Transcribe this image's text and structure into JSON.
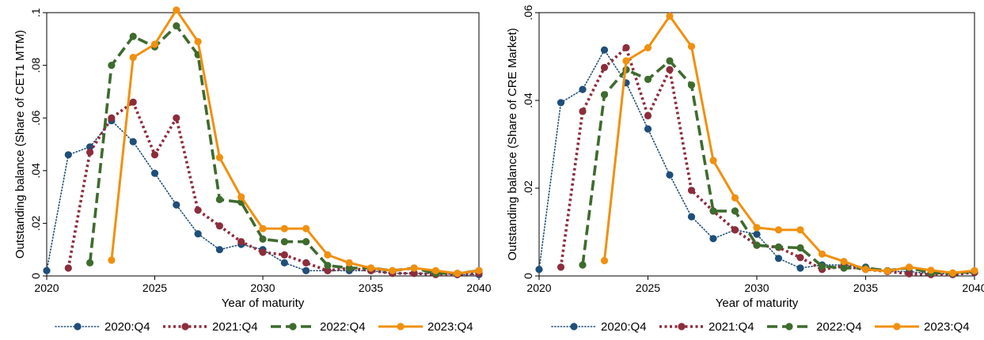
{
  "chart_data": [
    {
      "type": "line",
      "xlabel": "Year of maturity",
      "ylabel": "Outstanding balance (Share of CET1 MTM)",
      "xlim": [
        2020,
        2040
      ],
      "ylim": [
        0,
        0.1
      ],
      "xticks": [
        2020,
        2025,
        2030,
        2035,
        2040
      ],
      "xtick_labels": [
        "2020",
        "2025",
        "2030",
        "2035",
        "2040"
      ],
      "yticks": [
        0,
        0.02,
        0.04,
        0.06,
        0.08,
        0.1
      ],
      "ytick_labels": [
        "0",
        ".02",
        ".04",
        ".06",
        ".08",
        ".1"
      ],
      "legend_position": "bottom",
      "series": [
        {
          "name": "2020:Q4",
          "color": "#1f4e79",
          "style": "dotted",
          "x": [
            2020,
            2021,
            2022,
            2023,
            2024,
            2025,
            2026,
            2027,
            2028,
            2029,
            2030,
            2031,
            2032,
            2033,
            2034,
            2035,
            2036,
            2037,
            2038,
            2039,
            2040
          ],
          "y": [
            0.002,
            0.046,
            0.049,
            0.059,
            0.051,
            0.039,
            0.027,
            0.016,
            0.01,
            0.012,
            0.01,
            0.005,
            0.002,
            0.002,
            0.002,
            0.002,
            0.001,
            0.001,
            0.001,
            0.0005,
            0.0005
          ]
        },
        {
          "name": "2021:Q4",
          "color": "#8c2d3b",
          "style": "short-dash",
          "x": [
            2021,
            2022,
            2023,
            2024,
            2025,
            2026,
            2027,
            2028,
            2029,
            2030,
            2031,
            2032,
            2033,
            2034,
            2035,
            2036,
            2037,
            2038,
            2039,
            2040
          ],
          "y": [
            0.003,
            0.047,
            0.06,
            0.066,
            0.046,
            0.06,
            0.025,
            0.019,
            0.013,
            0.009,
            0.008,
            0.005,
            0.002,
            0.003,
            0.002,
            0.001,
            0.001,
            0.0005,
            0.0005,
            0.001
          ]
        },
        {
          "name": "2022:Q4",
          "color": "#3e6b2e",
          "style": "long-dash",
          "x": [
            2022,
            2023,
            2024,
            2025,
            2026,
            2027,
            2028,
            2029,
            2030,
            2031,
            2032,
            2033,
            2034,
            2035,
            2036,
            2037,
            2038,
            2039,
            2040
          ],
          "y": [
            0.005,
            0.08,
            0.091,
            0.087,
            0.095,
            0.084,
            0.029,
            0.028,
            0.014,
            0.013,
            0.013,
            0.004,
            0.003,
            0.003,
            0.002,
            0.003,
            0.001,
            0.001,
            0.002
          ]
        },
        {
          "name": "2023:Q4",
          "color": "#f0900f",
          "style": "solid",
          "x": [
            2023,
            2024,
            2025,
            2026,
            2027,
            2028,
            2029,
            2030,
            2031,
            2032,
            2033,
            2034,
            2035,
            2036,
            2037,
            2038,
            2039,
            2040
          ],
          "y": [
            0.006,
            0.083,
            0.088,
            0.101,
            0.089,
            0.045,
            0.03,
            0.018,
            0.018,
            0.018,
            0.008,
            0.005,
            0.003,
            0.002,
            0.003,
            0.002,
            0.001,
            0.002
          ]
        }
      ]
    },
    {
      "type": "line",
      "xlabel": "Year of maturity",
      "ylabel": "Outstanding balance (Share of CRE Market)",
      "xlim": [
        2020,
        2040
      ],
      "ylim": [
        0,
        0.06
      ],
      "xticks": [
        2020,
        2025,
        2030,
        2035,
        2040
      ],
      "xtick_labels": [
        "2020",
        "2025",
        "2030",
        "2035",
        "2040"
      ],
      "yticks": [
        0,
        0.02,
        0.04,
        0.06
      ],
      "ytick_labels": [
        "0",
        ".02",
        ".04",
        ".06"
      ],
      "legend_position": "bottom",
      "series": [
        {
          "name": "2020:Q4",
          "color": "#1f4e79",
          "style": "dotted",
          "x": [
            2020,
            2021,
            2022,
            2023,
            2024,
            2025,
            2026,
            2027,
            2028,
            2029,
            2030,
            2031,
            2032,
            2033,
            2034,
            2035,
            2036,
            2037,
            2038,
            2039,
            2040
          ],
          "y": [
            0.0015,
            0.0395,
            0.0425,
            0.0515,
            0.044,
            0.0335,
            0.023,
            0.0135,
            0.0085,
            0.0105,
            0.0095,
            0.004,
            0.0018,
            0.0025,
            0.0025,
            0.002,
            0.001,
            0.001,
            0.0005,
            0.0005,
            0.0008
          ]
        },
        {
          "name": "2021:Q4",
          "color": "#8c2d3b",
          "style": "short-dash",
          "x": [
            2021,
            2022,
            2023,
            2024,
            2025,
            2026,
            2027,
            2028,
            2029,
            2030,
            2031,
            2032,
            2033,
            2034,
            2035,
            2036,
            2037,
            2038,
            2039,
            2040
          ],
          "y": [
            0.002,
            0.0375,
            0.0475,
            0.052,
            0.0365,
            0.047,
            0.0195,
            0.0148,
            0.0105,
            0.007,
            0.0065,
            0.0042,
            0.0015,
            0.0022,
            0.0015,
            0.001,
            0.0005,
            0.0003,
            0.0003,
            0.0008
          ]
        },
        {
          "name": "2022:Q4",
          "color": "#3e6b2e",
          "style": "long-dash",
          "x": [
            2022,
            2023,
            2024,
            2025,
            2026,
            2027,
            2028,
            2029,
            2030,
            2031,
            2032,
            2033,
            2034,
            2035,
            2036,
            2037,
            2038,
            2039,
            2040
          ],
          "y": [
            0.0025,
            0.0413,
            0.047,
            0.0448,
            0.049,
            0.0435,
            0.0148,
            0.0148,
            0.007,
            0.0066,
            0.0064,
            0.0022,
            0.0018,
            0.0018,
            0.0012,
            0.0019,
            0.0007,
            0.0006,
            0.0011
          ]
        },
        {
          "name": "2023:Q4",
          "color": "#f0900f",
          "style": "solid",
          "x": [
            2023,
            2024,
            2025,
            2026,
            2027,
            2028,
            2029,
            2030,
            2031,
            2032,
            2033,
            2034,
            2035,
            2036,
            2037,
            2038,
            2039,
            2040
          ],
          "y": [
            0.0035,
            0.049,
            0.052,
            0.0592,
            0.0523,
            0.0263,
            0.0178,
            0.011,
            0.0105,
            0.0105,
            0.005,
            0.0033,
            0.0015,
            0.0011,
            0.002,
            0.0013,
            0.0007,
            0.0012
          ]
        }
      ]
    }
  ]
}
